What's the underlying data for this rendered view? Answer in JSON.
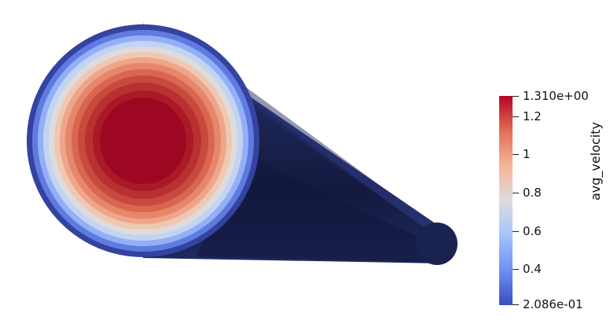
{
  "colorbar": {
    "title": "avg_velocity",
    "min_label": "2.086e-01",
    "max_label": "1.310e+00",
    "ticks": [
      "1.2",
      "1",
      "0.8",
      "0.6",
      "0.4"
    ],
    "colors": [
      "#3b4cc0",
      "#7b9ff9",
      "#c0d4f5",
      "#dddcdc",
      "#f2cbb7",
      "#ee8468",
      "#b40426"
    ]
  },
  "scene": {
    "background": "#ffffff",
    "pipe_body_color": "#1b2452",
    "rim_color": "#3443a0"
  }
}
